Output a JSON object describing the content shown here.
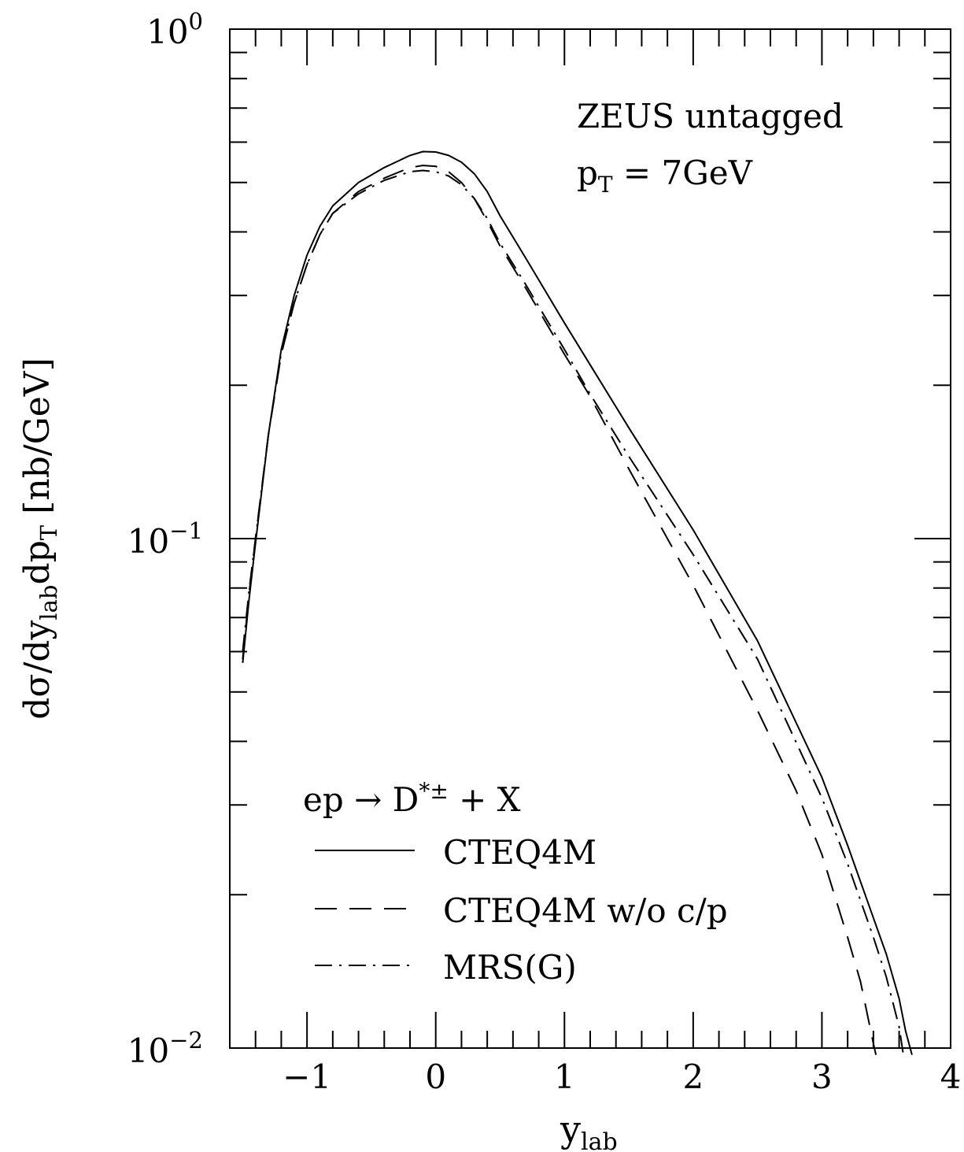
{
  "chart_data": {
    "type": "line",
    "annotation": {
      "line1": "ZEUS untagged",
      "line2_main": "p",
      "line2_sub": "T",
      "line2_rest": " = 7GeV"
    },
    "xlabel": {
      "main": "y",
      "sub": "lab"
    },
    "ylabel": {
      "p1": "dσ/dy",
      "s1": "lab",
      "p2": "dp",
      "s2": "T",
      "p3": " [nb/GeV]"
    },
    "x_ticks": [
      {
        "value": -1,
        "label": "−1"
      },
      {
        "value": 0,
        "label": "0"
      },
      {
        "value": 1,
        "label": "1"
      },
      {
        "value": 2,
        "label": "2"
      },
      {
        "value": 3,
        "label": "3"
      },
      {
        "value": 4,
        "label": "4"
      }
    ],
    "y_ticks": [
      {
        "value": 1,
        "base": "10",
        "exp": "0"
      },
      {
        "value": 0.1,
        "base": "10",
        "exp": "−1"
      },
      {
        "value": 0.01,
        "base": "10",
        "exp": "−2"
      }
    ],
    "xlim": [
      -1.6,
      4.0
    ],
    "ylim": [
      0.01,
      1.0
    ],
    "yscale": "log",
    "grid": false,
    "legend": {
      "title_main": "ep → D",
      "title_sup": "*±",
      "title_rest": " + X",
      "placement": "bottom-left"
    },
    "series": [
      {
        "name": "CTEQ4M",
        "style": "solid",
        "x": [
          -1.5,
          -1.45,
          -1.4,
          -1.3,
          -1.2,
          -1.1,
          -1.0,
          -0.9,
          -0.8,
          -0.6,
          -0.4,
          -0.2,
          -0.1,
          0.0,
          0.1,
          0.2,
          0.3,
          0.4,
          0.5,
          0.7,
          1.0,
          1.5,
          2.0,
          2.5,
          3.0,
          3.2,
          3.4,
          3.5,
          3.6,
          3.65,
          3.7
        ],
        "y": [
          0.057,
          0.076,
          0.098,
          0.16,
          0.235,
          0.3,
          0.36,
          0.41,
          0.45,
          0.5,
          0.535,
          0.565,
          0.575,
          0.574,
          0.565,
          0.548,
          0.52,
          0.48,
          0.43,
          0.355,
          0.265,
          0.165,
          0.104,
          0.063,
          0.034,
          0.025,
          0.018,
          0.0153,
          0.0125,
          0.0108,
          0.0097
        ]
      },
      {
        "name": "CTEQ4M w/o c/p",
        "style": "dashed",
        "x": [
          -1.5,
          -1.45,
          -1.4,
          -1.3,
          -1.2,
          -1.1,
          -1.0,
          -0.9,
          -0.8,
          -0.6,
          -0.4,
          -0.2,
          -0.1,
          0.0,
          0.1,
          0.2,
          0.3,
          0.4,
          0.5,
          0.7,
          1.0,
          1.2,
          1.5,
          2.0,
          2.5,
          2.8,
          3.0,
          3.2,
          3.3,
          3.4,
          3.42
        ],
        "y": [
          0.058,
          0.078,
          0.1,
          0.16,
          0.23,
          0.29,
          0.345,
          0.395,
          0.435,
          0.48,
          0.51,
          0.535,
          0.54,
          0.538,
          0.525,
          0.5,
          0.465,
          0.42,
          0.375,
          0.31,
          0.23,
          0.19,
          0.137,
          0.081,
          0.046,
          0.032,
          0.024,
          0.0165,
          0.0135,
          0.0102,
          0.0097
        ]
      },
      {
        "name": "MRS(G)",
        "style": "dashdot",
        "x": [
          -1.5,
          -1.45,
          -1.4,
          -1.3,
          -1.2,
          -1.1,
          -1.0,
          -0.9,
          -0.8,
          -0.6,
          -0.4,
          -0.2,
          -0.1,
          0.0,
          0.1,
          0.2,
          0.3,
          0.4,
          0.5,
          0.7,
          1.0,
          1.2,
          1.5,
          2.0,
          2.5,
          3.0,
          3.2,
          3.4,
          3.5,
          3.6,
          3.63
        ],
        "y": [
          0.06,
          0.079,
          0.1,
          0.16,
          0.232,
          0.29,
          0.345,
          0.395,
          0.435,
          0.475,
          0.505,
          0.525,
          0.528,
          0.525,
          0.515,
          0.495,
          0.465,
          0.425,
          0.38,
          0.315,
          0.235,
          0.192,
          0.145,
          0.093,
          0.058,
          0.031,
          0.023,
          0.0165,
          0.0138,
          0.011,
          0.0098
        ]
      }
    ]
  }
}
